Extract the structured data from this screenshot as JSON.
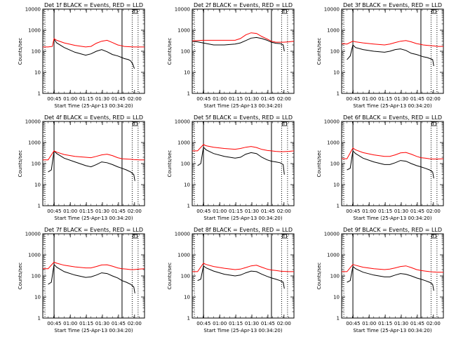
{
  "chart_data": [
    {
      "type": "line",
      "title": "Det 1f BLACK = Events, RED = LLD",
      "xlabel": "Start Time (25-Apr-13 00:34:20)",
      "ylabel": "Counts/sec",
      "yscale": "log",
      "ylim": [
        1,
        10000
      ],
      "xlim_minutes": [
        0,
        95
      ],
      "x_tick_labels": [
        "00:45",
        "01:00",
        "01:15",
        "01:30",
        "01:45",
        "02:00"
      ],
      "y_tick_labels": [
        "1",
        "10",
        "100",
        "1000",
        "10000"
      ],
      "vlines_solid_minutes": [
        10.5,
        74
      ],
      "vlines_dotted_minutes": [
        2,
        83.5,
        89
      ],
      "series": [
        {
          "name": "Events",
          "color": "#000000",
          "x": [
            10.5,
            13,
            20,
            30,
            40,
            45,
            50,
            55,
            60,
            65,
            70,
            74,
            76,
            80,
            82,
            84,
            85.5
          ],
          "y": [
            380,
            250,
            150,
            90,
            65,
            75,
            100,
            120,
            95,
            70,
            60,
            50,
            45,
            40,
            35,
            25,
            15
          ]
        },
        {
          "name": "LLD",
          "color": "#ff0000",
          "x": [
            0,
            5,
            9,
            10.5,
            13,
            20,
            30,
            40,
            45,
            50,
            55,
            60,
            65,
            70,
            74,
            76,
            80,
            85,
            90,
            95
          ],
          "y": [
            160,
            160,
            170,
            400,
            330,
            250,
            190,
            160,
            170,
            240,
            300,
            330,
            260,
            200,
            180,
            170,
            165,
            160,
            160,
            160
          ]
        }
      ]
    },
    {
      "type": "line",
      "title": "Det 2f BLACK = Events, RED = LLD",
      "xlabel": "Start Time (25-Apr-13 00:34:20)",
      "ylabel": "Counts/sec",
      "yscale": "log",
      "ylim": [
        1,
        10000
      ],
      "xlim_minutes": [
        0,
        95
      ],
      "x_tick_labels": [
        "00:45",
        "01:00",
        "01:15",
        "01:30",
        "01:45",
        "02:00"
      ],
      "y_tick_labels": [
        "1",
        "10",
        "100",
        "1000",
        "10000"
      ],
      "vlines_solid_minutes": [
        10.5,
        74
      ],
      "vlines_dotted_minutes": [
        2,
        83.5,
        89
      ],
      "series": [
        {
          "name": "Events",
          "color": "#000000",
          "x": [
            0,
            5,
            10,
            20,
            30,
            40,
            45,
            50,
            55,
            60,
            65,
            70,
            74,
            78,
            82,
            85,
            86
          ],
          "y": [
            300,
            280,
            250,
            200,
            200,
            220,
            250,
            320,
            420,
            450,
            400,
            330,
            270,
            240,
            230,
            200,
            100
          ]
        },
        {
          "name": "LLD",
          "color": "#ff0000",
          "x": [
            0,
            5,
            10,
            20,
            30,
            40,
            45,
            50,
            55,
            60,
            65,
            70,
            74,
            78,
            82,
            85,
            90,
            95
          ],
          "y": [
            310,
            320,
            330,
            330,
            330,
            330,
            400,
            600,
            750,
            700,
            500,
            380,
            300,
            270,
            270,
            270,
            280,
            300
          ]
        }
      ]
    },
    {
      "type": "line",
      "title": "Det 3f BLACK = Events, RED = LLD",
      "xlabel": "Start Time (25-Apr-13 00:34:20)",
      "ylabel": "Counts/sec",
      "yscale": "log",
      "ylim": [
        1,
        10000
      ],
      "xlim_minutes": [
        0,
        95
      ],
      "x_tick_labels": [
        "00:45",
        "01:00",
        "01:15",
        "01:30",
        "01:45",
        "02:00"
      ],
      "y_tick_labels": [
        "1",
        "10",
        "100",
        "1000",
        "10000"
      ],
      "vlines_solid_minutes": [
        10.5,
        74
      ],
      "vlines_dotted_minutes": [
        2,
        83.5,
        89
      ],
      "series": [
        {
          "name": "Events",
          "color": "#000000",
          "x": [
            5,
            8,
            10.5,
            13,
            20,
            30,
            40,
            45,
            50,
            55,
            60,
            65,
            70,
            74,
            76,
            80,
            85,
            86
          ],
          "y": [
            40,
            60,
            200,
            150,
            120,
            100,
            90,
            100,
            120,
            130,
            110,
            80,
            70,
            60,
            55,
            50,
            40,
            20
          ]
        },
        {
          "name": "LLD",
          "color": "#ff0000",
          "x": [
            0,
            5,
            10.5,
            13,
            20,
            30,
            40,
            45,
            50,
            55,
            60,
            65,
            70,
            74,
            76,
            80,
            85,
            90,
            95
          ],
          "y": [
            230,
            220,
            300,
            280,
            250,
            220,
            200,
            220,
            260,
            300,
            320,
            280,
            230,
            210,
            200,
            190,
            180,
            170,
            170
          ]
        }
      ]
    },
    {
      "type": "line",
      "title": "Det 4f BLACK = Events, RED = LLD",
      "xlabel": "Start Time (25-Apr-13 00:34:20)",
      "ylabel": "Counts/sec",
      "yscale": "log",
      "ylim": [
        1,
        10000
      ],
      "xlim_minutes": [
        0,
        95
      ],
      "x_tick_labels": [
        "00:45",
        "01:00",
        "01:15",
        "01:30",
        "01:45",
        "02:00"
      ],
      "y_tick_labels": [
        "1",
        "10",
        "100",
        "1000",
        "10000"
      ],
      "vlines_solid_minutes": [
        10.5,
        74
      ],
      "vlines_dotted_minutes": [
        2,
        83.5,
        89
      ],
      "series": [
        {
          "name": "Events",
          "color": "#000000",
          "x": [
            5,
            8,
            10.5,
            13,
            20,
            30,
            40,
            45,
            50,
            55,
            60,
            65,
            70,
            74,
            78,
            82,
            85,
            86
          ],
          "y": [
            40,
            50,
            400,
            300,
            180,
            120,
            80,
            70,
            90,
            120,
            110,
            90,
            70,
            60,
            50,
            40,
            30,
            15
          ]
        },
        {
          "name": "LLD",
          "color": "#ff0000",
          "x": [
            0,
            5,
            10.5,
            13,
            20,
            30,
            40,
            45,
            50,
            55,
            60,
            65,
            70,
            74,
            78,
            82,
            85,
            90,
            95
          ],
          "y": [
            150,
            150,
            400,
            350,
            270,
            220,
            200,
            190,
            220,
            260,
            280,
            240,
            190,
            170,
            165,
            160,
            155,
            150,
            150
          ]
        }
      ]
    },
    {
      "type": "line",
      "title": "Det 5f BLACK = Events, RED = LLD",
      "xlabel": "Start Time (25-Apr-13 00:34:20)",
      "ylabel": "Counts/sec",
      "yscale": "log",
      "ylim": [
        1,
        10000
      ],
      "xlim_minutes": [
        0,
        95
      ],
      "x_tick_labels": [
        "00:45",
        "01:00",
        "01:15",
        "01:30",
        "01:45",
        "02:00"
      ],
      "y_tick_labels": [
        "1",
        "10",
        "100",
        "1000",
        "10000"
      ],
      "vlines_solid_minutes": [
        10.5,
        74
      ],
      "vlines_dotted_minutes": [
        2,
        83.5,
        89
      ],
      "series": [
        {
          "name": "Events",
          "color": "#000000",
          "x": [
            5,
            8,
            10.5,
            13,
            20,
            30,
            40,
            45,
            50,
            55,
            60,
            65,
            70,
            74,
            78,
            82,
            85,
            86
          ],
          "y": [
            80,
            100,
            600,
            450,
            300,
            220,
            180,
            200,
            280,
            330,
            300,
            200,
            150,
            130,
            120,
            110,
            90,
            30
          ]
        },
        {
          "name": "LLD",
          "color": "#ff0000",
          "x": [
            0,
            5,
            10.5,
            13,
            20,
            30,
            40,
            45,
            50,
            55,
            60,
            65,
            70,
            74,
            78,
            82,
            85,
            90,
            95
          ],
          "y": [
            400,
            400,
            800,
            700,
            600,
            520,
            480,
            520,
            600,
            650,
            580,
            470,
            420,
            400,
            380,
            370,
            370,
            380,
            400
          ]
        }
      ]
    },
    {
      "type": "line",
      "title": "Det 6f BLACK = Events, RED = LLD",
      "xlabel": "Start Time (25-Apr-13 00:34:20)",
      "ylabel": "Counts/sec",
      "yscale": "log",
      "ylim": [
        1,
        10000
      ],
      "xlim_minutes": [
        0,
        95
      ],
      "x_tick_labels": [
        "00:45",
        "01:00",
        "01:15",
        "01:30",
        "01:45",
        "02:00"
      ],
      "y_tick_labels": [
        "1",
        "10",
        "100",
        "1000",
        "10000"
      ],
      "vlines_solid_minutes": [
        10.5,
        74
      ],
      "vlines_dotted_minutes": [
        2,
        83.5,
        89
      ],
      "series": [
        {
          "name": "Events",
          "color": "#000000",
          "x": [
            5,
            8,
            10.5,
            13,
            20,
            30,
            40,
            45,
            50,
            55,
            60,
            65,
            70,
            74,
            78,
            82,
            85,
            86
          ],
          "y": [
            50,
            60,
            400,
            300,
            180,
            120,
            90,
            90,
            110,
            140,
            130,
            100,
            80,
            70,
            60,
            50,
            40,
            20
          ]
        },
        {
          "name": "LLD",
          "color": "#ff0000",
          "x": [
            0,
            5,
            10.5,
            13,
            20,
            30,
            40,
            45,
            50,
            55,
            60,
            65,
            70,
            74,
            78,
            82,
            85,
            90,
            95
          ],
          "y": [
            170,
            170,
            550,
            450,
            330,
            260,
            220,
            220,
            260,
            320,
            340,
            280,
            220,
            190,
            180,
            170,
            165,
            165,
            170
          ]
        }
      ]
    },
    {
      "type": "line",
      "title": "Det 7f BLACK = Events, RED = LLD",
      "xlabel": "Start Time (25-Apr-13 00:34:20)",
      "ylabel": "Counts/sec",
      "yscale": "log",
      "ylim": [
        1,
        10000
      ],
      "xlim_minutes": [
        0,
        95
      ],
      "x_tick_labels": [
        "00:45",
        "01:00",
        "01:15",
        "01:30",
        "01:45",
        "02:00"
      ],
      "y_tick_labels": [
        "1",
        "10",
        "100",
        "1000",
        "10000"
      ],
      "vlines_solid_minutes": [
        10.5,
        74
      ],
      "vlines_dotted_minutes": [
        2,
        83.5,
        89
      ],
      "series": [
        {
          "name": "Events",
          "color": "#000000",
          "x": [
            5,
            8,
            10.5,
            13,
            20,
            30,
            40,
            45,
            50,
            55,
            60,
            65,
            70,
            74,
            78,
            82,
            85,
            86
          ],
          "y": [
            40,
            50,
            350,
            260,
            160,
            110,
            85,
            90,
            110,
            140,
            130,
            100,
            80,
            60,
            50,
            40,
            30,
            15
          ]
        },
        {
          "name": "LLD",
          "color": "#ff0000",
          "x": [
            0,
            5,
            10.5,
            13,
            20,
            30,
            40,
            45,
            50,
            55,
            60,
            65,
            70,
            74,
            78,
            82,
            85,
            90,
            95
          ],
          "y": [
            220,
            220,
            450,
            400,
            320,
            270,
            240,
            240,
            280,
            330,
            340,
            290,
            240,
            220,
            210,
            200,
            200,
            210,
            220
          ]
        }
      ]
    },
    {
      "type": "line",
      "title": "Det 8f BLACK = Events, RED = LLD",
      "xlabel": "Start Time (25-Apr-13 00:34:20)",
      "ylabel": "Counts/sec",
      "yscale": "log",
      "ylim": [
        1,
        10000
      ],
      "xlim_minutes": [
        0,
        95
      ],
      "x_tick_labels": [
        "00:45",
        "01:00",
        "01:15",
        "01:30",
        "01:45",
        "02:00"
      ],
      "y_tick_labels": [
        "1",
        "10",
        "100",
        "1000",
        "10000"
      ],
      "vlines_solid_minutes": [
        10.5,
        74
      ],
      "vlines_dotted_minutes": [
        2,
        83.5,
        89
      ],
      "series": [
        {
          "name": "Events",
          "color": "#000000",
          "x": [
            5,
            8,
            10.5,
            13,
            20,
            30,
            40,
            45,
            50,
            55,
            60,
            65,
            70,
            74,
            78,
            82,
            85,
            86
          ],
          "y": [
            60,
            70,
            300,
            240,
            170,
            120,
            100,
            110,
            140,
            170,
            160,
            120,
            95,
            80,
            70,
            60,
            50,
            25
          ]
        },
        {
          "name": "LLD",
          "color": "#ff0000",
          "x": [
            0,
            5,
            10.5,
            13,
            20,
            30,
            40,
            45,
            50,
            55,
            60,
            65,
            70,
            74,
            78,
            82,
            85,
            90,
            95
          ],
          "y": [
            160,
            160,
            400,
            350,
            280,
            230,
            200,
            210,
            250,
            300,
            320,
            260,
            210,
            190,
            180,
            170,
            165,
            160,
            160
          ]
        }
      ]
    },
    {
      "type": "line",
      "title": "Det 9f BLACK = Events, RED = LLD",
      "xlabel": "Start Time (25-Apr-13 00:34:20)",
      "ylabel": "Counts/sec",
      "yscale": "log",
      "ylim": [
        1,
        10000
      ],
      "xlim_minutes": [
        0,
        95
      ],
      "x_tick_labels": [
        "00:45",
        "01:00",
        "01:15",
        "01:30",
        "01:45",
        "02:00"
      ],
      "y_tick_labels": [
        "1",
        "10",
        "100",
        "1000",
        "10000"
      ],
      "vlines_solid_minutes": [
        10.5,
        74
      ],
      "vlines_dotted_minutes": [
        2,
        83.5,
        89
      ],
      "series": [
        {
          "name": "Events",
          "color": "#000000",
          "x": [
            5,
            8,
            10.5,
            13,
            20,
            30,
            40,
            45,
            50,
            55,
            60,
            65,
            70,
            74,
            78,
            82,
            85,
            86
          ],
          "y": [
            50,
            60,
            280,
            220,
            150,
            110,
            90,
            90,
            110,
            130,
            120,
            100,
            80,
            70,
            60,
            50,
            40,
            20
          ]
        },
        {
          "name": "LLD",
          "color": "#ff0000",
          "x": [
            0,
            5,
            10.5,
            13,
            20,
            30,
            40,
            45,
            50,
            55,
            60,
            65,
            70,
            74,
            78,
            82,
            85,
            90,
            95
          ],
          "y": [
            160,
            160,
            350,
            320,
            260,
            220,
            200,
            210,
            240,
            280,
            300,
            250,
            200,
            180,
            170,
            160,
            155,
            150,
            150
          ]
        }
      ]
    }
  ]
}
